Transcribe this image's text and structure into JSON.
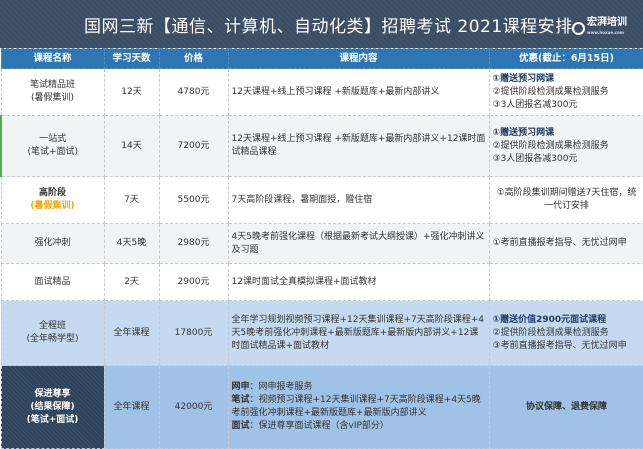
{
  "title": "国网三新【通信、计算机、自动化类】招聘考试 2021课程安排",
  "logo": {
    "name": "宏湃培训",
    "url": "www.hoxue.com"
  },
  "headers": [
    "课程名称",
    "学习天数",
    "价格",
    "课程内容",
    "优惠(截止：6月15日)"
  ],
  "rows": [
    {
      "name": [
        "笔试精品班",
        "(暑假集训)"
      ],
      "days": "12天",
      "price": "4780元",
      "content": [
        "12天课程+线上预习课程 +新版题库+最新内部讲义"
      ],
      "promo": [
        "①赠送预习网课",
        "②提供阶段检测成果检测服务",
        "③3人团报名减300元"
      ]
    },
    {
      "name": [
        "一站式",
        "(笔试+面试)"
      ],
      "days": "14天",
      "price": "7200元",
      "content": [
        "12天课程+线上预习课程 +新版题库+最新内部讲义+12课时面试精品课程"
      ],
      "promo": [
        "①赠送预习网课",
        "②提供阶段检测成果检测服务",
        "③3人团报各减300元"
      ]
    },
    {
      "name": [
        "高阶段",
        "(暑假集训)"
      ],
      "days": "7天",
      "price": "5500元",
      "content": [
        "7天高阶段课程，暑期面授，赠住宿"
      ],
      "promo": [
        "①高阶段集训期间赠送7天住宿，统一代订安排"
      ]
    },
    {
      "name": [
        "强化冲刺"
      ],
      "days": "4天5晚",
      "price": "2980元",
      "content": [
        "4天5晚考前强化课程（根据最新考试大纲授课）+强化冲刺讲义及习题"
      ],
      "promo": [
        "①考前直播报考指导、无忧过网申"
      ]
    },
    {
      "name": [
        "面试精品"
      ],
      "days": "2天",
      "price": "2900元",
      "content": [
        "12课时面试全真模拟课程+面试教材"
      ],
      "promo": []
    },
    {
      "name": [
        "全程班",
        "(全年畅学型)"
      ],
      "days": "全年课程",
      "price": "17800元",
      "content": [
        "全年学习规划视频预习课程+12天集训课程+7天高阶段课程+4天5晚考前强化冲刺课程+最新版题库+最新版内部讲义+12课时面试精品课+面试教材"
      ],
      "promo": [
        "①赠送价值2900元面试课程",
        "②提供阶段检测成果检测服务",
        "③考前直播报考指导、无忧过网申"
      ]
    },
    {
      "name": [
        "保进尊享",
        "(结果保障)",
        "(笔试+面试)"
      ],
      "days": "全年课程",
      "price": "42000元",
      "content_labeled": [
        {
          "label": "网申",
          "text": "：网申报考服务"
        },
        {
          "label": "笔试",
          "text": "：视频预习课程+12天集训课程+7天高阶段课程+4天5晚考前强化冲刺课程+最新版题库+最新版内部讲义"
        },
        {
          "label": "面试",
          "text": "：保进尊享面试课程（含vIP部分）"
        }
      ],
      "promo": [
        "协议保障、退费保障"
      ]
    }
  ],
  "colors": {
    "title_bg": "#3b4d63",
    "header_bg": "#2e75b6",
    "highlight": "#f5a800"
  }
}
